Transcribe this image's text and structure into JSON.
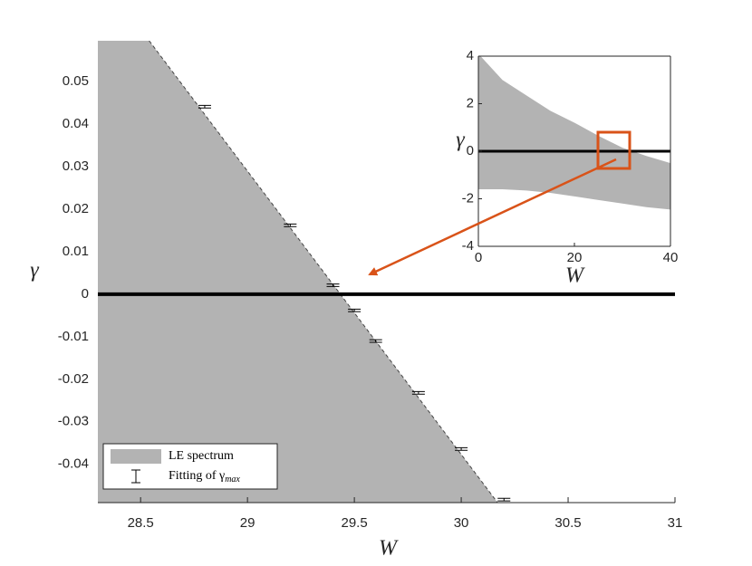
{
  "chart_data": [
    {
      "type": "area",
      "xlabel": "W",
      "ylabel": "γ",
      "xlim": [
        28.3,
        31
      ],
      "ylim": [
        -0.049,
        0.0596
      ],
      "xticks": [
        28.5,
        29,
        29.5,
        30,
        30.5,
        31
      ],
      "yticks": [
        -0.04,
        -0.03,
        -0.02,
        -0.01,
        0,
        0.01,
        0.02,
        0.03,
        0.04,
        0.05
      ],
      "hline": 0,
      "legend": "lower left",
      "series": [
        {
          "name": "LE spectrum",
          "color": "#b3b3b3",
          "kind": "fill-left",
          "x": [
            28.54,
            30.17
          ],
          "y": [
            0.0596,
            -0.049
          ]
        },
        {
          "name": "Fitting of γmax",
          "color": "#000000",
          "kind": "errorbar",
          "x": [
            28.8,
            29.2,
            29.4,
            29.5,
            29.6,
            29.8,
            30.0,
            30.2
          ],
          "y": [
            0.0441,
            0.0162,
            0.0021,
            -0.0038,
            -0.011,
            -0.0232,
            -0.0364,
            -0.0483
          ],
          "error": [
            0.0003,
            0.0003,
            0.0003,
            0.0003,
            0.0003,
            0.0003,
            0.0003,
            0.0003
          ]
        }
      ]
    },
    {
      "type": "area",
      "xlabel": "W",
      "ylabel": "γ",
      "xlim": [
        0,
        40
      ],
      "ylim": [
        -4,
        4
      ],
      "xticks": [
        0,
        20,
        40
      ],
      "yticks": [
        -4,
        -2,
        0,
        2,
        4
      ],
      "hline": 0,
      "series": [
        {
          "color": "#b3b3b3",
          "kind": "band",
          "x": [
            0,
            5,
            10,
            15,
            20,
            25,
            30,
            35,
            40
          ],
          "upper": [
            4.1,
            3.0,
            2.35,
            1.7,
            1.2,
            0.65,
            0.15,
            -0.2,
            -0.5
          ],
          "lower": [
            -1.6,
            -1.6,
            -1.65,
            -1.75,
            -1.9,
            -2.05,
            -2.2,
            -2.35,
            -2.45
          ]
        }
      ]
    }
  ]
}
